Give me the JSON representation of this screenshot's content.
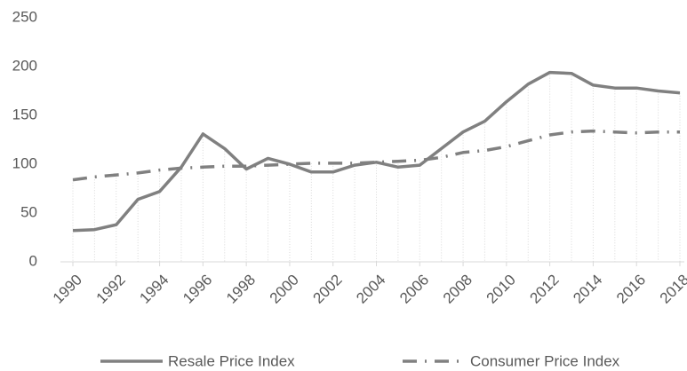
{
  "chart_data": {
    "type": "line",
    "x": [
      1990,
      1991,
      1992,
      1993,
      1994,
      1995,
      1996,
      1997,
      1998,
      1999,
      2000,
      2001,
      2002,
      2003,
      2004,
      2005,
      2006,
      2007,
      2008,
      2009,
      2010,
      2011,
      2012,
      2013,
      2014,
      2015,
      2016,
      2017,
      2018
    ],
    "xlim": [
      1990,
      2018
    ],
    "xticks": [
      1990,
      1992,
      1994,
      1996,
      1998,
      2000,
      2002,
      2004,
      2006,
      2008,
      2010,
      2012,
      2014,
      2016,
      2018
    ],
    "ylim": [
      0,
      250
    ],
    "yticks": [
      0,
      50,
      100,
      150,
      200,
      250
    ],
    "drop_lines": true,
    "legend": "bottom",
    "series": [
      {
        "name": "Resale Price Index",
        "color": "#808080",
        "dash": "solid",
        "values": [
          32,
          33,
          38,
          64,
          72,
          97,
          131,
          116,
          95,
          106,
          100,
          92,
          92,
          99,
          102,
          97,
          99,
          116,
          133,
          144,
          164,
          182,
          194,
          193,
          181,
          178,
          178,
          175,
          173
        ]
      },
      {
        "name": "Consumer Price Index",
        "color": "#808080",
        "dash": "dash-dot",
        "values": [
          84,
          87,
          89,
          91,
          94,
          96,
          97,
          98,
          98,
          99,
          100,
          101,
          101,
          101,
          102,
          103,
          104,
          107,
          112,
          114,
          118,
          124,
          130,
          133,
          134,
          133,
          132,
          133,
          133
        ]
      }
    ]
  }
}
